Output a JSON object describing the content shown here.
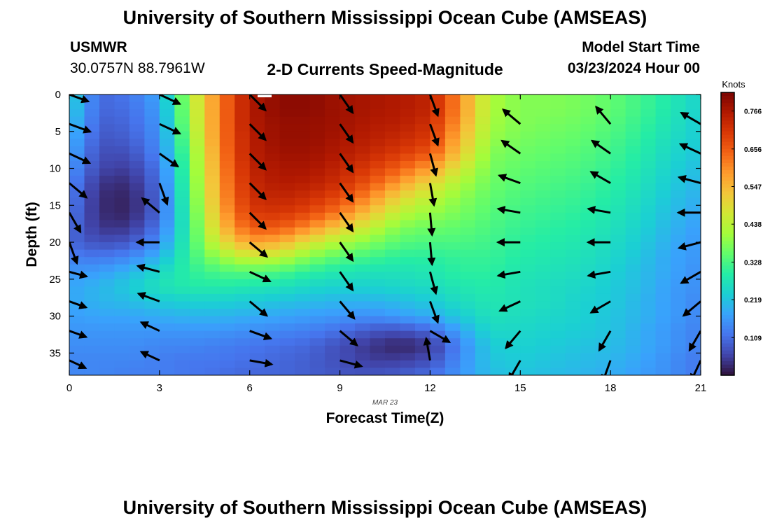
{
  "header": {
    "title": "University of Southern Mississippi Ocean Cube (AMSEAS)",
    "station": "USMWR",
    "location": "30.0757N  88.7961W",
    "plot_title": "2-D Currents Speed-Magnitude",
    "model_start_label": "Model Start Time",
    "model_start_value": "03/23/2024 Hour 00"
  },
  "footer": {
    "title": "University of Southern Mississippi Ocean Cube (AMSEAS)"
  },
  "chart_data": {
    "type": "heatmap",
    "title": "2-D Currents Speed-Magnitude",
    "xlabel": "Forecast Time(Z)",
    "ylabel": "Depth (ft)",
    "x_ticks": [
      0,
      3,
      6,
      9,
      12,
      15,
      18,
      21
    ],
    "y_ticks": [
      0,
      5,
      10,
      15,
      20,
      25,
      30,
      35
    ],
    "xlim": [
      0,
      21
    ],
    "ylim": [
      0,
      38
    ],
    "date_label": "MAR 23",
    "colorbar": {
      "unit": "Knots",
      "ticks": [
        0.766,
        0.656,
        0.547,
        0.438,
        0.328,
        0.219,
        0.109
      ],
      "range": [
        0,
        0.82
      ],
      "colors": [
        "#30123b",
        "#4145ab",
        "#4675ed",
        "#39a2fc",
        "#1bcfd4",
        "#24eca6",
        "#61fc6c",
        "#a4fc3b",
        "#d1e834",
        "#f3c63a",
        "#fe9b2d",
        "#f36315",
        "#d93806",
        "#b11901",
        "#7a0402"
      ]
    },
    "speed_field": {
      "description": "current speed magnitude (knots) sampled at each forecast hour (columns 0..21) and depth (rows 0..38 ft, step 2)",
      "depths": [
        0,
        2,
        4,
        6,
        8,
        10,
        12,
        14,
        16,
        18,
        20,
        22,
        24,
        26,
        28,
        30,
        32,
        34,
        36,
        38
      ],
      "hours": [
        0,
        1,
        2,
        3,
        4,
        5,
        6,
        7,
        8,
        9,
        10,
        11,
        12,
        13,
        14,
        15,
        16,
        17,
        18,
        19,
        20,
        21
      ],
      "values": [
        [
          0.25,
          0.1,
          0.12,
          0.18,
          0.42,
          0.62,
          0.76,
          0.8,
          0.8,
          0.78,
          0.77,
          0.76,
          0.74,
          0.6,
          0.42,
          0.38,
          0.38,
          0.37,
          0.35,
          0.32,
          0.28,
          0.24
        ],
        [
          0.24,
          0.1,
          0.11,
          0.17,
          0.41,
          0.62,
          0.76,
          0.8,
          0.8,
          0.78,
          0.77,
          0.76,
          0.74,
          0.6,
          0.42,
          0.38,
          0.38,
          0.37,
          0.35,
          0.32,
          0.28,
          0.24
        ],
        [
          0.22,
          0.09,
          0.1,
          0.16,
          0.4,
          0.62,
          0.76,
          0.79,
          0.79,
          0.78,
          0.76,
          0.75,
          0.72,
          0.58,
          0.41,
          0.38,
          0.37,
          0.36,
          0.34,
          0.31,
          0.27,
          0.23
        ],
        [
          0.2,
          0.08,
          0.09,
          0.15,
          0.38,
          0.62,
          0.75,
          0.79,
          0.79,
          0.77,
          0.75,
          0.73,
          0.7,
          0.55,
          0.4,
          0.37,
          0.36,
          0.35,
          0.33,
          0.3,
          0.26,
          0.23
        ],
        [
          0.18,
          0.07,
          0.07,
          0.14,
          0.36,
          0.61,
          0.75,
          0.78,
          0.78,
          0.76,
          0.73,
          0.7,
          0.66,
          0.52,
          0.38,
          0.36,
          0.35,
          0.34,
          0.32,
          0.29,
          0.25,
          0.22
        ],
        [
          0.16,
          0.06,
          0.05,
          0.12,
          0.35,
          0.6,
          0.74,
          0.77,
          0.77,
          0.74,
          0.7,
          0.65,
          0.58,
          0.47,
          0.37,
          0.35,
          0.34,
          0.33,
          0.31,
          0.28,
          0.24,
          0.21
        ],
        [
          0.14,
          0.04,
          0.03,
          0.11,
          0.34,
          0.59,
          0.73,
          0.76,
          0.75,
          0.72,
          0.66,
          0.58,
          0.5,
          0.42,
          0.36,
          0.34,
          0.33,
          0.32,
          0.3,
          0.27,
          0.23,
          0.2
        ],
        [
          0.13,
          0.03,
          0.02,
          0.1,
          0.33,
          0.58,
          0.72,
          0.74,
          0.72,
          0.68,
          0.6,
          0.5,
          0.44,
          0.39,
          0.35,
          0.33,
          0.32,
          0.31,
          0.29,
          0.26,
          0.22,
          0.19
        ],
        [
          0.12,
          0.03,
          0.02,
          0.1,
          0.32,
          0.56,
          0.7,
          0.71,
          0.68,
          0.62,
          0.53,
          0.44,
          0.4,
          0.37,
          0.34,
          0.32,
          0.31,
          0.3,
          0.28,
          0.25,
          0.21,
          0.18
        ],
        [
          0.11,
          0.04,
          0.04,
          0.12,
          0.31,
          0.53,
          0.66,
          0.66,
          0.6,
          0.52,
          0.45,
          0.38,
          0.36,
          0.35,
          0.33,
          0.31,
          0.3,
          0.29,
          0.27,
          0.24,
          0.2,
          0.17
        ],
        [
          0.1,
          0.07,
          0.08,
          0.15,
          0.31,
          0.48,
          0.58,
          0.56,
          0.48,
          0.42,
          0.38,
          0.34,
          0.33,
          0.33,
          0.32,
          0.3,
          0.29,
          0.28,
          0.26,
          0.23,
          0.19,
          0.16
        ],
        [
          0.13,
          0.12,
          0.14,
          0.2,
          0.31,
          0.4,
          0.46,
          0.44,
          0.38,
          0.34,
          0.32,
          0.3,
          0.3,
          0.31,
          0.31,
          0.29,
          0.28,
          0.27,
          0.25,
          0.22,
          0.18,
          0.16
        ],
        [
          0.16,
          0.17,
          0.2,
          0.25,
          0.3,
          0.33,
          0.34,
          0.33,
          0.3,
          0.28,
          0.27,
          0.27,
          0.28,
          0.3,
          0.3,
          0.28,
          0.27,
          0.26,
          0.24,
          0.21,
          0.18,
          0.15
        ],
        [
          0.18,
          0.2,
          0.23,
          0.27,
          0.29,
          0.29,
          0.28,
          0.27,
          0.25,
          0.24,
          0.24,
          0.25,
          0.26,
          0.28,
          0.29,
          0.27,
          0.26,
          0.25,
          0.23,
          0.21,
          0.17,
          0.15
        ],
        [
          0.18,
          0.2,
          0.21,
          0.23,
          0.24,
          0.24,
          0.23,
          0.22,
          0.21,
          0.2,
          0.2,
          0.21,
          0.23,
          0.26,
          0.28,
          0.27,
          0.26,
          0.24,
          0.23,
          0.2,
          0.17,
          0.14
        ],
        [
          0.17,
          0.18,
          0.18,
          0.19,
          0.2,
          0.2,
          0.19,
          0.18,
          0.17,
          0.16,
          0.15,
          0.17,
          0.19,
          0.23,
          0.27,
          0.26,
          0.25,
          0.24,
          0.22,
          0.2,
          0.17,
          0.14
        ],
        [
          0.16,
          0.16,
          0.16,
          0.16,
          0.16,
          0.16,
          0.15,
          0.14,
          0.13,
          0.11,
          0.08,
          0.07,
          0.1,
          0.18,
          0.25,
          0.25,
          0.24,
          0.23,
          0.22,
          0.19,
          0.16,
          0.13
        ],
        [
          0.15,
          0.15,
          0.15,
          0.14,
          0.14,
          0.13,
          0.12,
          0.11,
          0.1,
          0.07,
          0.04,
          0.02,
          0.04,
          0.14,
          0.23,
          0.24,
          0.23,
          0.22,
          0.21,
          0.19,
          0.16,
          0.13
        ],
        [
          0.14,
          0.14,
          0.14,
          0.13,
          0.12,
          0.12,
          0.11,
          0.1,
          0.09,
          0.07,
          0.05,
          0.05,
          0.07,
          0.15,
          0.22,
          0.23,
          0.22,
          0.21,
          0.2,
          0.18,
          0.15,
          0.12
        ],
        [
          0.14,
          0.14,
          0.13,
          0.13,
          0.12,
          0.11,
          0.1,
          0.1,
          0.09,
          0.08,
          0.08,
          0.09,
          0.11,
          0.16,
          0.21,
          0.22,
          0.21,
          0.2,
          0.19,
          0.17,
          0.15,
          0.12
        ]
      ]
    },
    "vectors": {
      "description": "current direction arrows (degrees, 0=east, counter-clockwise) at forecast hours 0,3,6,9,12,15,18,21 and depths 0..36 ft step 4",
      "hours": [
        0,
        3,
        6,
        9,
        12,
        15,
        18,
        21
      ],
      "depths": [
        0,
        4,
        8,
        12,
        16,
        20,
        24,
        28,
        32,
        36
      ],
      "angles_deg": [
        [
          -20,
          -25,
          -45,
          -55,
          -70,
          135,
          125,
          130
        ],
        [
          -20,
          -25,
          -45,
          -55,
          -70,
          140,
          130,
          150
        ],
        [
          -25,
          -35,
          -45,
          -55,
          -75,
          145,
          145,
          155
        ],
        [
          -40,
          -70,
          -45,
          -55,
          -80,
          160,
          150,
          165
        ],
        [
          -60,
          140,
          -45,
          -55,
          -85,
          170,
          170,
          180
        ],
        [
          -70,
          180,
          -40,
          -55,
          -85,
          180,
          180,
          -165
        ],
        [
          -15,
          165,
          -25,
          -55,
          -75,
          -170,
          -170,
          -150
        ],
        [
          -20,
          160,
          -40,
          -50,
          -70,
          -155,
          -150,
          -140
        ],
        [
          -20,
          155,
          -20,
          -40,
          -30,
          -130,
          -120,
          -120
        ],
        [
          -25,
          155,
          -10,
          -15,
          100,
          -120,
          -110,
          -115
        ]
      ],
      "lengths": [
        [
          0.9,
          1.0,
          1.0,
          1.0,
          1.0,
          1.0,
          1.0,
          1.0
        ],
        [
          1.0,
          1.0,
          1.0,
          1.0,
          1.0,
          1.0,
          1.0,
          1.0
        ],
        [
          1.0,
          1.0,
          1.0,
          1.0,
          1.0,
          1.0,
          1.0,
          1.0
        ],
        [
          1.0,
          1.0,
          1.0,
          1.0,
          1.0,
          1.0,
          1.0,
          1.0
        ],
        [
          1.0,
          1.0,
          1.0,
          1.0,
          1.0,
          1.0,
          1.0,
          1.0
        ],
        [
          1.0,
          1.0,
          1.0,
          1.0,
          1.0,
          1.0,
          1.0,
          1.0
        ],
        [
          0.8,
          1.0,
          1.0,
          1.0,
          1.0,
          1.0,
          1.0,
          1.0
        ],
        [
          0.8,
          1.0,
          1.0,
          1.0,
          1.0,
          1.0,
          1.0,
          1.0
        ],
        [
          0.8,
          0.9,
          1.0,
          1.0,
          1.0,
          1.0,
          1.0,
          1.0
        ],
        [
          0.8,
          0.9,
          1.0,
          1.0,
          1.0,
          1.0,
          1.0,
          1.0
        ]
      ]
    }
  }
}
